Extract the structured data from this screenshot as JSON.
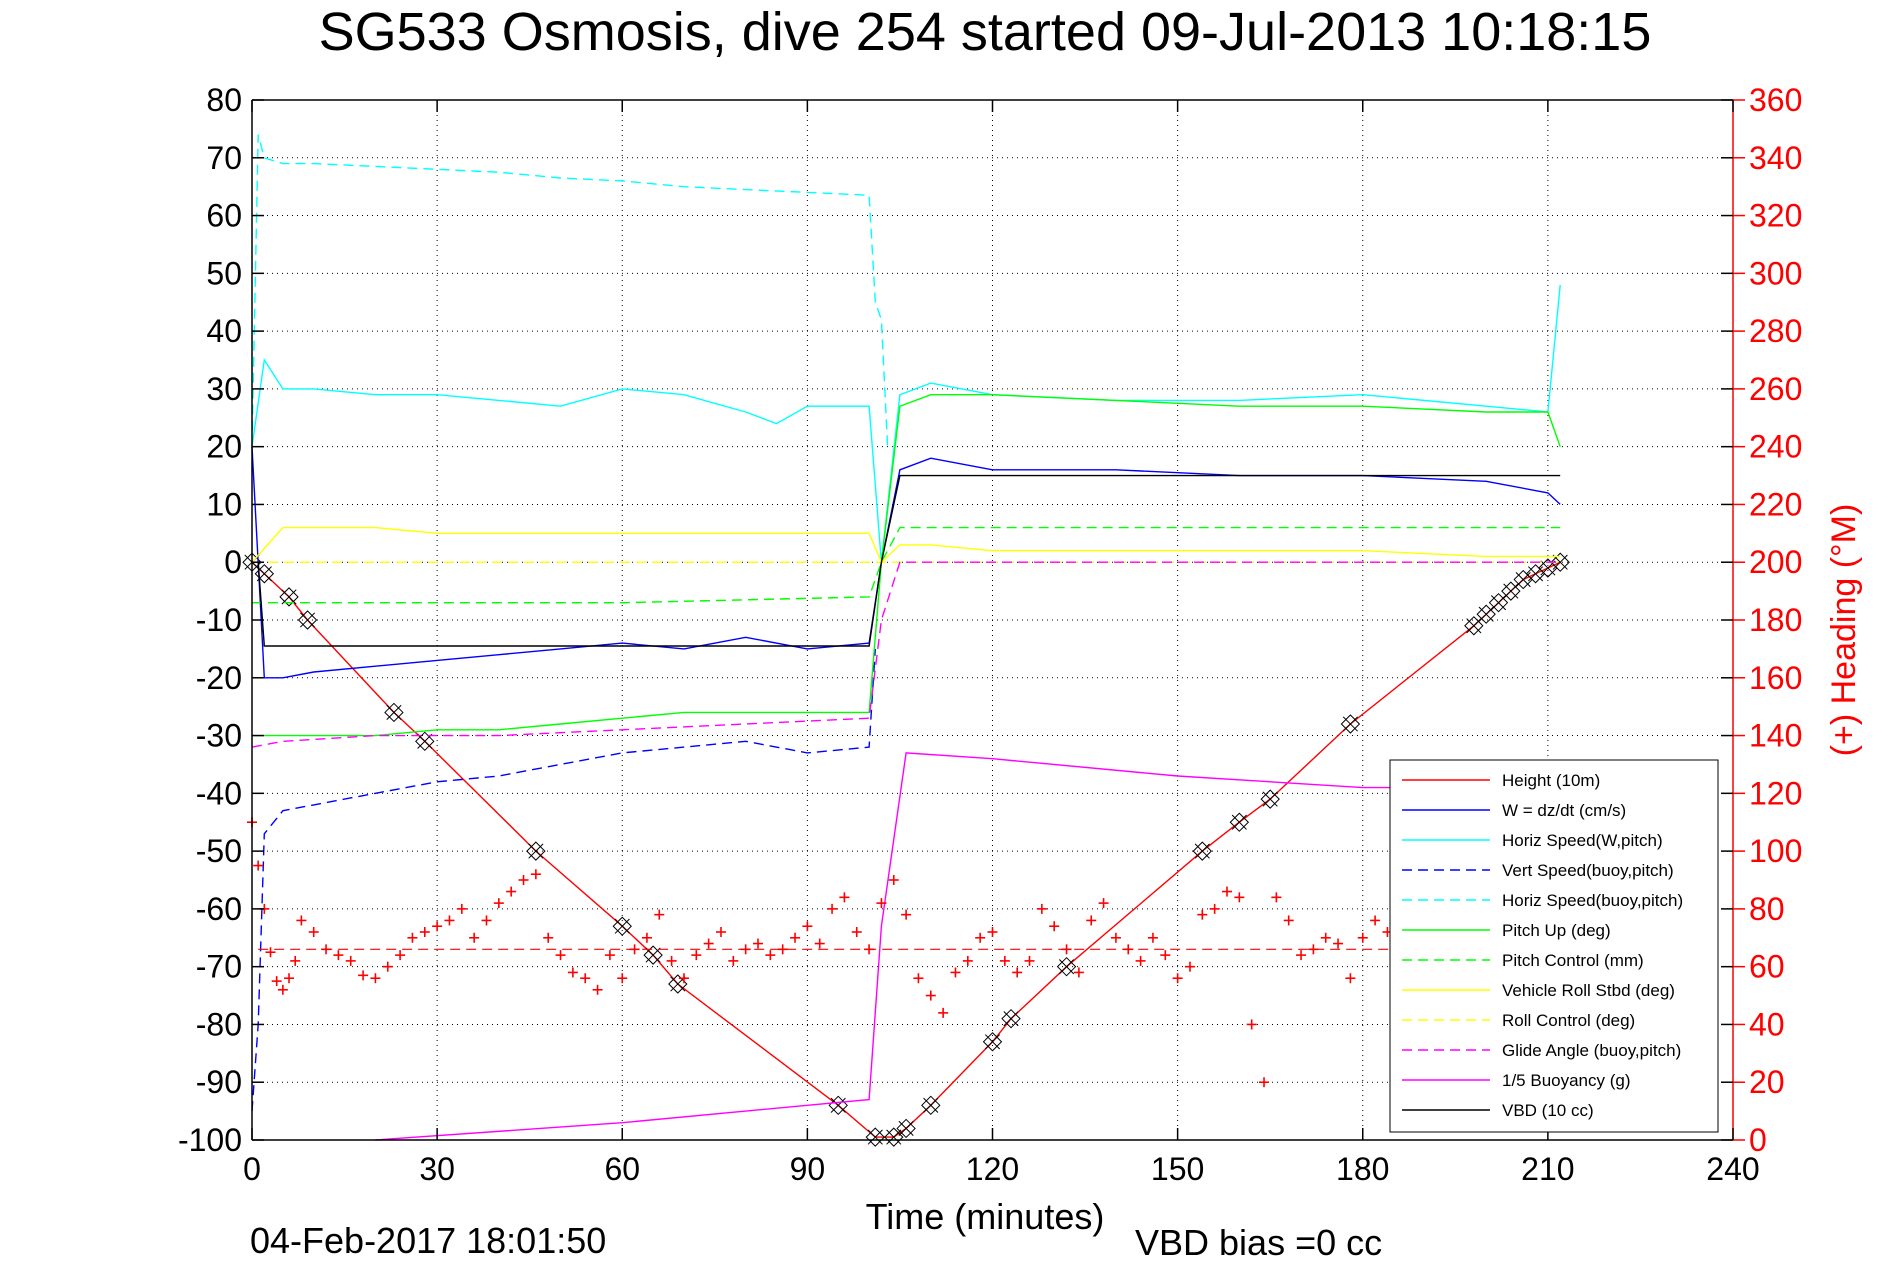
{
  "chart_data": {
    "type": "line",
    "title": "SG533 Osmosis, dive 254 started 09-Jul-2013 10:18:15",
    "xlabel": "Time (minutes)",
    "ylabel": "",
    "y2label": "(+) Heading (°M)",
    "footer_left": "04-Feb-2017 18:01:50",
    "footer_right": "VBD bias =0 cc",
    "xlim": [
      0,
      240
    ],
    "ylim": [
      -100,
      80
    ],
    "y2lim": [
      0,
      360
    ],
    "xticks": [
      0,
      30,
      60,
      90,
      120,
      150,
      180,
      210,
      240
    ],
    "yticks": [
      80,
      70,
      60,
      50,
      40,
      30,
      20,
      10,
      0,
      -10,
      -20,
      -30,
      -40,
      -50,
      -60,
      -70,
      -80,
      -90,
      -100
    ],
    "y2ticks": [
      360,
      340,
      320,
      300,
      280,
      260,
      240,
      220,
      200,
      180,
      160,
      140,
      120,
      100,
      80,
      60,
      40,
      20,
      0
    ],
    "grid": true,
    "legend_position": "bottom-right",
    "series": [
      {
        "name": "Height (10m)",
        "color": "#ff0000",
        "style": "solid",
        "marker": "diamond-x",
        "x": [
          0,
          2,
          6,
          9,
          23,
          28,
          46,
          60,
          65,
          69,
          95,
          101,
          104,
          106,
          110,
          120,
          123,
          132,
          154,
          160,
          165,
          178,
          198,
          200,
          202,
          204,
          206,
          208,
          210,
          212
        ],
        "y": [
          0,
          -2,
          -6,
          -10,
          -26,
          -31,
          -50,
          -63,
          -68,
          -73,
          -94,
          -99.5,
          -99.5,
          -98,
          -94,
          -83,
          -79,
          -70,
          -50,
          -45,
          -41,
          -28,
          -11,
          -9,
          -7,
          -5,
          -3,
          -2,
          -1,
          0
        ]
      },
      {
        "name": "W = dz/dt (cm/s)",
        "color": "#0000ff",
        "style": "solid",
        "x": [
          0,
          2,
          5,
          10,
          20,
          30,
          40,
          50,
          60,
          70,
          80,
          90,
          100,
          102,
          105,
          110,
          120,
          140,
          160,
          180,
          200,
          210,
          212
        ],
        "y": [
          20,
          -20,
          -20,
          -19,
          -18,
          -17,
          -16,
          -15,
          -14,
          -15,
          -13,
          -15,
          -14,
          0,
          16,
          18,
          16,
          16,
          15,
          15,
          14,
          12,
          10
        ]
      },
      {
        "name": "Horiz Speed(W,pitch)",
        "color": "#00ffff",
        "style": "solid",
        "x": [
          0,
          2,
          5,
          10,
          20,
          30,
          40,
          50,
          60,
          70,
          80,
          85,
          90,
          100,
          102,
          105,
          110,
          120,
          140,
          160,
          180,
          200,
          210,
          212
        ],
        "y": [
          20,
          35,
          30,
          30,
          29,
          29,
          28,
          27,
          30,
          29,
          26,
          24,
          27,
          27,
          0,
          29,
          31,
          29,
          28,
          28,
          29,
          27,
          26,
          48
        ]
      },
      {
        "name": "Vert Speed(buoy,pitch)",
        "color": "#0000ff",
        "style": "dashed",
        "x": [
          0,
          1,
          2,
          5,
          10,
          20,
          30,
          40,
          50,
          60,
          70,
          80,
          90,
          100,
          101
        ],
        "y": [
          -95,
          -80,
          -47,
          -43,
          -42,
          -40,
          -38,
          -37,
          -35,
          -33,
          -32,
          -31,
          -33,
          -32,
          -15
        ]
      },
      {
        "name": "Horiz Speed(buoy,pitch)",
        "color": "#00ffff",
        "style": "dashed",
        "x": [
          0,
          1,
          2,
          5,
          10,
          20,
          30,
          40,
          50,
          60,
          70,
          80,
          90,
          100,
          101,
          102,
          103
        ],
        "y": [
          20,
          74,
          70,
          69,
          69,
          68.5,
          68,
          67.5,
          66.5,
          66,
          65,
          64.5,
          64,
          63.5,
          45,
          42,
          20
        ]
      },
      {
        "name": "Pitch Up (deg)",
        "color": "#00ff00",
        "style": "solid",
        "x": [
          0,
          5,
          10,
          20,
          30,
          40,
          50,
          60,
          70,
          80,
          90,
          100,
          102,
          105,
          110,
          120,
          140,
          160,
          180,
          200,
          210,
          212
        ],
        "y": [
          -30,
          -30,
          -30,
          -30,
          -29,
          -29,
          -28,
          -27,
          -26,
          -26,
          -26,
          -26,
          0,
          27,
          29,
          29,
          28,
          27,
          27,
          26,
          26,
          20
        ]
      },
      {
        "name": "Pitch Control (mm)",
        "color": "#00ff00",
        "style": "dashed",
        "x": [
          0,
          60,
          100,
          102,
          105,
          150,
          212
        ],
        "y": [
          -7,
          -7,
          -6,
          0,
          6,
          6,
          6
        ]
      },
      {
        "name": "Vehicle Roll Stbd (deg)",
        "color": "#ffff00",
        "style": "solid",
        "x": [
          0,
          5,
          10,
          20,
          30,
          50,
          70,
          90,
          100,
          102,
          105,
          110,
          120,
          150,
          180,
          200,
          212
        ],
        "y": [
          0,
          6,
          6,
          6,
          5,
          5,
          5,
          5,
          5,
          0,
          3,
          3,
          2,
          2,
          2,
          1,
          1
        ]
      },
      {
        "name": "Roll Control (deg)",
        "color": "#ffff00",
        "style": "dashed",
        "x": [
          0,
          212
        ],
        "y": [
          0,
          0
        ]
      },
      {
        "name": "Glide Angle (buoy,pitch)",
        "color": "#ff00ff",
        "style": "dashed",
        "x": [
          0,
          5,
          20,
          40,
          60,
          80,
          100,
          102,
          105,
          212
        ],
        "y": [
          -32,
          -31,
          -30,
          -30,
          -29,
          -28,
          -27,
          -10,
          0,
          0
        ]
      },
      {
        "name": "1/5 Buoyancy (g)",
        "color": "#ff00ff",
        "style": "solid",
        "x": [
          20,
          60,
          90,
          100,
          102,
          106,
          120,
          150,
          180,
          190
        ],
        "y": [
          -100,
          -97,
          -94,
          -93,
          -63,
          -33,
          -34,
          -37,
          -39,
          -39
        ]
      },
      {
        "name": "VBD (10 cc)",
        "color": "#000000",
        "style": "solid",
        "x": [
          1,
          2,
          100,
          102,
          105,
          212
        ],
        "y": [
          0,
          -14.5,
          -14.5,
          0,
          15,
          15
        ]
      }
    ],
    "heading": {
      "color": "#ff0000",
      "marker": "+",
      "mean_heading": 66,
      "x": [
        0,
        1,
        2,
        3,
        4,
        5,
        6,
        7,
        8,
        10,
        12,
        14,
        16,
        18,
        20,
        22,
        24,
        26,
        28,
        30,
        32,
        34,
        36,
        38,
        40,
        42,
        44,
        46,
        48,
        50,
        52,
        54,
        56,
        58,
        60,
        62,
        64,
        66,
        68,
        70,
        72,
        74,
        76,
        78,
        80,
        82,
        84,
        86,
        88,
        90,
        92,
        94,
        96,
        98,
        100,
        102,
        104,
        106,
        108,
        110,
        112,
        114,
        116,
        118,
        120,
        122,
        124,
        126,
        128,
        130,
        132,
        134,
        136,
        138,
        140,
        142,
        144,
        146,
        148,
        150,
        152,
        154,
        156,
        158,
        160,
        162,
        164,
        166,
        168,
        170,
        172,
        174,
        176,
        178,
        180,
        182,
        184
      ],
      "y": [
        110,
        95,
        80,
        65,
        55,
        52,
        56,
        62,
        76,
        72,
        66,
        64,
        62,
        57,
        56,
        60,
        64,
        70,
        72,
        74,
        76,
        80,
        70,
        76,
        82,
        86,
        90,
        92,
        70,
        64,
        58,
        56,
        52,
        64,
        56,
        66,
        70,
        78,
        62,
        56,
        64,
        68,
        72,
        62,
        66,
        68,
        64,
        66,
        70,
        74,
        68,
        80,
        84,
        72,
        66,
        82,
        90,
        78,
        56,
        50,
        44,
        58,
        62,
        70,
        72,
        62,
        58,
        62,
        80,
        74,
        66,
        58,
        76,
        82,
        70,
        66,
        62,
        70,
        64,
        56,
        60,
        78,
        80,
        86,
        84,
        40,
        20,
        84,
        76,
        64,
        66,
        70,
        68,
        56,
        70,
        76,
        72
      ]
    }
  }
}
